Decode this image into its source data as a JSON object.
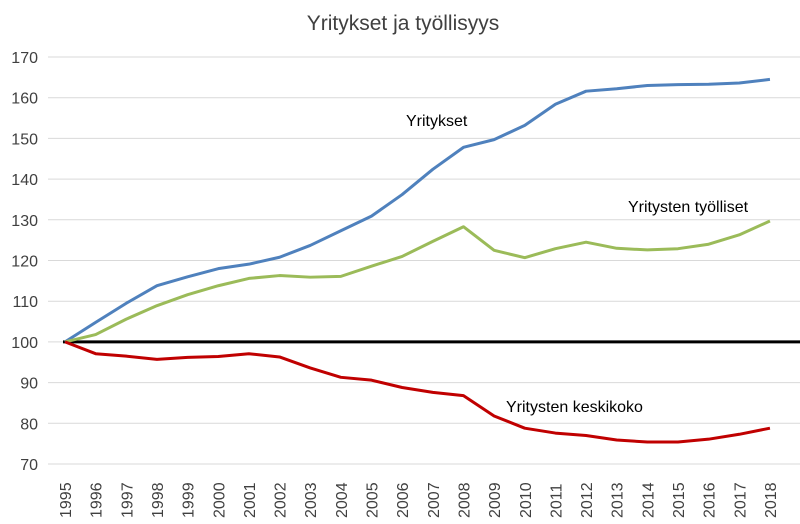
{
  "chart_data": {
    "type": "line",
    "title": "Yritykset ja työllisyys",
    "xlabel": "",
    "ylabel": "",
    "ylim": [
      70,
      170
    ],
    "y_ticks": [
      "70",
      "80",
      "90",
      "100",
      "110",
      "120",
      "130",
      "140",
      "150",
      "160",
      "170"
    ],
    "x": [
      "1995",
      "1996",
      "1997",
      "1998",
      "1999",
      "2000",
      "2001",
      "2002",
      "2003",
      "2004",
      "2005",
      "2006",
      "2007",
      "2008",
      "2009",
      "2010",
      "2011",
      "2012",
      "2013",
      "2014",
      "2015",
      "2016",
      "2017",
      "2018"
    ],
    "grid": true,
    "reference_line": {
      "y": 100,
      "color": "#000000"
    },
    "series": [
      {
        "label": "Yritykset",
        "color": "#4F81BD",
        "values": [
          100,
          104.8,
          109.5,
          113.8,
          116,
          118,
          119.1,
          120.8,
          123.7,
          127.3,
          130.9,
          136.2,
          142.4,
          147.8,
          149.7,
          153.2,
          158.4,
          161.6,
          162.2,
          163,
          163.2,
          163.3,
          163.6,
          164.5
        ]
      },
      {
        "label": "Yritysten työlliset",
        "color": "#9BBB59",
        "values": [
          100,
          101.8,
          105.6,
          108.9,
          111.6,
          113.8,
          115.6,
          116.3,
          115.9,
          116.1,
          118.6,
          121,
          124.7,
          128.3,
          122.5,
          120.7,
          122.9,
          124.5,
          123,
          122.6,
          122.9,
          124,
          126.3,
          129.7
        ]
      },
      {
        "label": "Yritysten keskikoko",
        "color": "#C00000",
        "values": [
          100,
          97.1,
          96.5,
          95.7,
          96.2,
          96.4,
          97.1,
          96.3,
          93.6,
          91.3,
          90.6,
          88.8,
          87.6,
          86.8,
          81.8,
          78.8,
          77.6,
          77,
          75.9,
          75.4,
          75.4,
          76.1,
          77.3,
          78.8
        ]
      }
    ]
  }
}
